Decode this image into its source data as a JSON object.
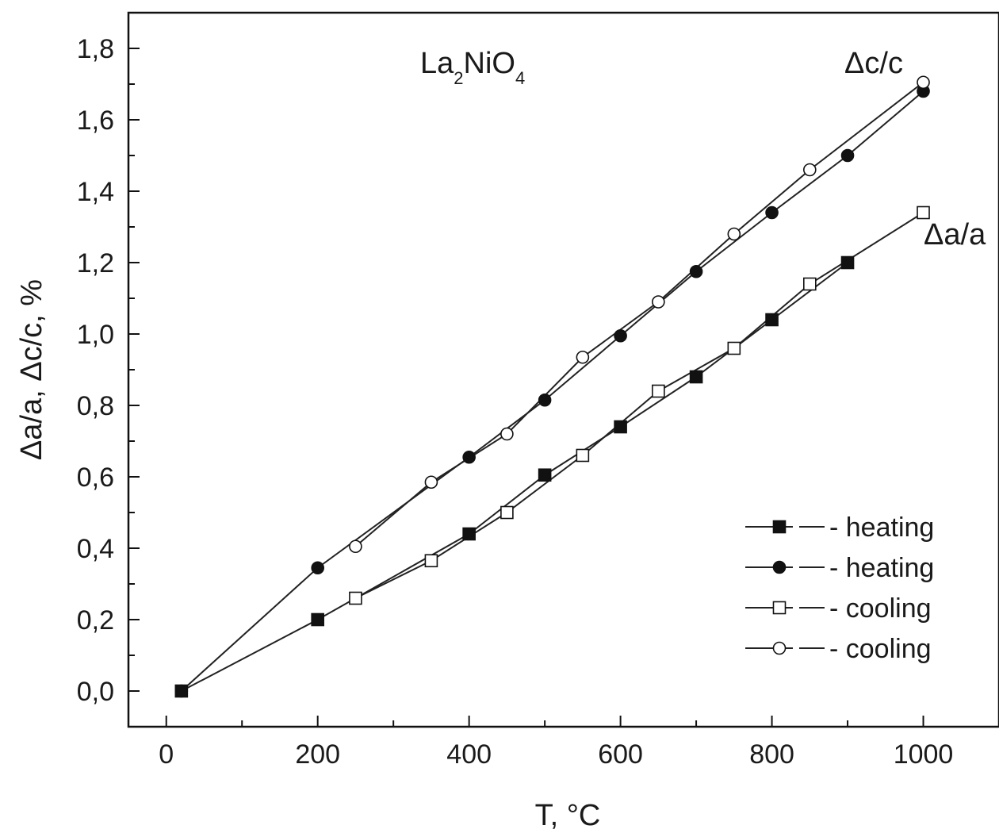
{
  "chart_data": {
    "type": "line",
    "title": "",
    "xlabel": "T, °C",
    "ylabel": "Δa/a,  Δc/c, %",
    "xlim": [
      -50,
      1100
    ],
    "ylim": [
      -0.1,
      1.9
    ],
    "xticks": [
      0,
      200,
      400,
      600,
      800,
      1000
    ],
    "xtick_labels": [
      "0",
      "200",
      "400",
      "600",
      "800",
      "1000"
    ],
    "yticks": [
      0.0,
      0.2,
      0.4,
      0.6,
      0.8,
      1.0,
      1.2,
      1.4,
      1.6,
      1.8
    ],
    "ytick_labels": [
      "0,0",
      "0,2",
      "0,4",
      "0,6",
      "0,8",
      "1,0",
      "1,2",
      "1,4",
      "1,6",
      "1,8"
    ],
    "grid": false,
    "legend_position": "bottom-right",
    "annotations": {
      "formula": {
        "base": "La",
        "sub1": "2",
        "mid": "NiO",
        "sub2": "4"
      },
      "dc_label": "Δc/c",
      "da_label": "Δa/a"
    },
    "series": [
      {
        "name": "- heating",
        "marker": "filled-square",
        "x": [
          20,
          200,
          400,
          500,
          600,
          700,
          800,
          900
        ],
        "y": [
          0.0,
          0.2,
          0.44,
          0.605,
          0.74,
          0.88,
          1.04,
          1.2
        ]
      },
      {
        "name": "- heating",
        "marker": "filled-circle",
        "x": [
          20,
          200,
          400,
          500,
          600,
          700,
          800,
          900,
          1000
        ],
        "y": [
          0.0,
          0.345,
          0.655,
          0.815,
          0.995,
          1.175,
          1.34,
          1.5,
          1.68
        ]
      },
      {
        "name": "- cooling",
        "marker": "open-square",
        "x": [
          250,
          350,
          450,
          550,
          650,
          750,
          850,
          1000
        ],
        "y": [
          0.26,
          0.365,
          0.5,
          0.66,
          0.84,
          0.96,
          1.14,
          1.34
        ]
      },
      {
        "name": "- cooling",
        "marker": "open-circle",
        "x": [
          250,
          350,
          450,
          550,
          650,
          750,
          850,
          1000
        ],
        "y": [
          0.405,
          0.585,
          0.72,
          0.935,
          1.09,
          1.28,
          1.46,
          1.705
        ]
      }
    ]
  }
}
